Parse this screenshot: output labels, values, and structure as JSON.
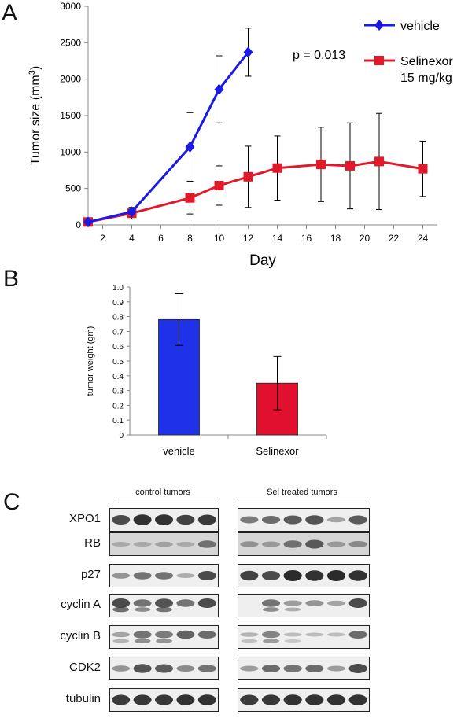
{
  "panel_letters": {
    "a": "A",
    "b": "B",
    "c": "C"
  },
  "chart_data": [
    {
      "type": "line",
      "title": "",
      "xlabel": "Day",
      "ylabel": "Tumor size (mm",
      "ylabel_sup": "3",
      "ylabel_close": ")",
      "xlim": [
        1,
        25
      ],
      "ylim": [
        0,
        3000
      ],
      "xticks": [
        2,
        4,
        6,
        8,
        10,
        12,
        14,
        16,
        18,
        20,
        22,
        24
      ],
      "yticks": [
        0,
        500,
        1000,
        1500,
        2000,
        2500,
        3000
      ],
      "annotation": "p = 0.013",
      "series": [
        {
          "name": "vehicle",
          "color": "#1a1ae6",
          "marker": "diamond",
          "x": [
            1,
            4,
            8,
            10,
            12
          ],
          "y": [
            40,
            180,
            1070,
            1860,
            2370
          ],
          "err": [
            15,
            30,
            470,
            460,
            330
          ]
        },
        {
          "name": "Selinexor",
          "name_line2": "15 mg/kg",
          "color": "#e01a2a",
          "marker": "square",
          "x": [
            1,
            4,
            8,
            10,
            12,
            14,
            17,
            19,
            21,
            24
          ],
          "y": [
            40,
            160,
            370,
            540,
            660,
            780,
            830,
            810,
            870,
            770
          ],
          "err": [
            15,
            80,
            220,
            270,
            420,
            440,
            510,
            590,
            660,
            380
          ]
        }
      ]
    },
    {
      "type": "bar",
      "title": "",
      "xlabel": "",
      "ylabel": "tumor weight (gm)",
      "ylim": [
        0,
        1.0
      ],
      "yticks": [
        "0",
        "0.1",
        "0.2",
        "0.3",
        "0.4",
        "0.5",
        "0.6",
        "0.7",
        "0.8",
        "0.9",
        "1.0"
      ],
      "categories": [
        "vehicle",
        "Selinexor"
      ],
      "values": [
        0.78,
        0.35
      ],
      "err": [
        0.175,
        0.18
      ],
      "colors": [
        "#1f32e8",
        "#e0102e"
      ]
    }
  ],
  "western_blot": {
    "groups": [
      "control tumors",
      "Sel  treated tumors"
    ],
    "rows": [
      {
        "label": "XPO1",
        "control": [
          0.8,
          0.95,
          0.95,
          0.85,
          0.9
        ],
        "treated": [
          0.5,
          0.6,
          0.7,
          0.75,
          0.25,
          0.7
        ],
        "double": false
      },
      {
        "label": "RB",
        "control": [
          0.2,
          0.2,
          0.25,
          0.2,
          0.55
        ],
        "treated": [
          0.35,
          0.3,
          0.55,
          0.7,
          0.3,
          0.4
        ],
        "double": false
      },
      {
        "label": "p27",
        "control": [
          0.35,
          0.55,
          0.55,
          0.2,
          0.8
        ],
        "treated": [
          0.85,
          0.8,
          1.0,
          0.95,
          1.0,
          0.95
        ],
        "double": false
      },
      {
        "label": "cyclin A",
        "control": [
          0.8,
          0.55,
          0.75,
          0.55,
          0.8
        ],
        "treated": [
          0.0,
          0.55,
          0.3,
          0.35,
          0.25,
          0.8
        ],
        "double": true
      },
      {
        "label": "cyclin B",
        "control": [
          0.25,
          0.55,
          0.5,
          0.65,
          0.6
        ],
        "treated": [
          0.15,
          0.45,
          0.1,
          0.1,
          0.1,
          0.6
        ],
        "double": true
      },
      {
        "label": "CDK2",
        "control": [
          0.35,
          0.75,
          0.7,
          0.4,
          0.55
        ],
        "treated": [
          0.3,
          0.6,
          0.55,
          0.6,
          0.3,
          0.8
        ],
        "double": false
      },
      {
        "label": "tubulin",
        "control": [
          0.9,
          0.92,
          0.92,
          0.95,
          0.95
        ],
        "treated": [
          0.9,
          0.92,
          0.95,
          0.95,
          0.95,
          0.95
        ],
        "double": false
      }
    ]
  }
}
